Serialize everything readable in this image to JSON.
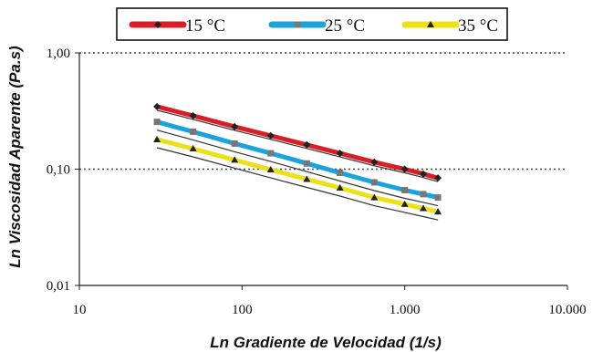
{
  "chart_data": {
    "type": "line",
    "xlabel": "Ln Gradiente de Velocidad (1/s)",
    "ylabel": "Ln Viscosidad Aparente (Pa.s)",
    "x_scale": "log",
    "y_scale": "log",
    "xlim": [
      10,
      10000
    ],
    "ylim": [
      0.01,
      1
    ],
    "x_ticks": [
      "10",
      "100",
      "1.000",
      "10.000"
    ],
    "y_ticks": [
      "0,01",
      "0,10",
      "1,00"
    ],
    "grid": "horizontal dotted",
    "legend_position": "top",
    "x": [
      30,
      50,
      90,
      150,
      250,
      400,
      650,
      1000,
      1300,
      1600
    ],
    "series": [
      {
        "name": "15 °C",
        "color": "#d81f26",
        "values": [
          0.345,
          0.288,
          0.232,
          0.194,
          0.162,
          0.137,
          0.115,
          0.1,
          0.091,
          0.084
        ]
      },
      {
        "name": "25 °C",
        "color": "#1aa3dc",
        "values": [
          0.255,
          0.21,
          0.166,
          0.137,
          0.112,
          0.093,
          0.077,
          0.066,
          0.061,
          0.057
        ]
      },
      {
        "name": "35 °C",
        "color": "#ece016",
        "values": [
          0.18,
          0.15,
          0.12,
          0.099,
          0.082,
          0.069,
          0.057,
          0.05,
          0.046,
          0.043
        ]
      }
    ]
  }
}
